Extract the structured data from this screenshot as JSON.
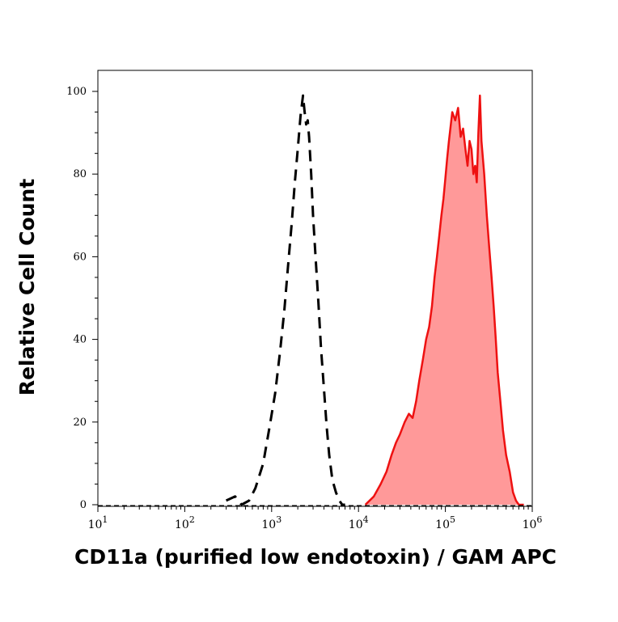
{
  "chart_data": {
    "type": "area",
    "title": "",
    "xlabel": "CD11a (purified low endotoxin) / GAM APC",
    "ylabel": "Relative Cell Count",
    "xscale": "log",
    "xlim": [
      10,
      1000000
    ],
    "ylim": [
      0,
      100
    ],
    "y_ticks": [
      0,
      20,
      40,
      60,
      80,
      100
    ],
    "x_ticks": [
      {
        "value": 10,
        "base": "10",
        "exp": "1"
      },
      {
        "value": 100,
        "base": "10",
        "exp": "2"
      },
      {
        "value": 1000,
        "base": "10",
        "exp": "3"
      },
      {
        "value": 10000,
        "base": "10",
        "exp": "4"
      },
      {
        "value": 100000,
        "base": "10",
        "exp": "5"
      },
      {
        "value": 1000000,
        "base": "10",
        "exp": "6"
      }
    ],
    "grid": false,
    "legend": "none",
    "series": [
      {
        "style": "dashed",
        "color": "#000000",
        "fill": "none",
        "x": [
          300,
          380,
          450,
          550,
          650,
          800,
          950,
          1100,
          1250,
          1400,
          1550,
          1700,
          1850,
          2000,
          2150,
          2300,
          2400,
          2500,
          2600,
          2700,
          2850,
          3000,
          3200,
          3450,
          3700,
          4000,
          4300,
          4600,
          5000,
          5500,
          6000,
          6500,
          7000
        ],
        "y": [
          1,
          2,
          0,
          1,
          4,
          10,
          19,
          27,
          37,
          47,
          58,
          68,
          78,
          86,
          94,
          99,
          95,
          92,
          93,
          89,
          80,
          70,
          60,
          49,
          38,
          28,
          19,
          12,
          6,
          3,
          1,
          0,
          0
        ]
      },
      {
        "style": "solid",
        "color": "#ee1111",
        "fill": "#ff9999",
        "x": [
          12000,
          15000,
          18000,
          21000,
          24000,
          27000,
          30000,
          34000,
          38000,
          42000,
          46000,
          50000,
          55000,
          60000,
          65000,
          70000,
          75000,
          80000,
          85000,
          90000,
          95000,
          100000,
          105000,
          110000,
          120000,
          130000,
          140000,
          150000,
          160000,
          170000,
          180000,
          190000,
          200000,
          210000,
          220000,
          230000,
          240000,
          250000,
          260000,
          280000,
          300000,
          320000,
          340000,
          360000,
          380000,
          400000,
          430000,
          460000,
          500000,
          550000,
          600000,
          650000,
          700000,
          750000,
          800000
        ],
        "y": [
          0,
          2,
          5,
          8,
          12,
          15,
          17,
          20,
          22,
          21,
          25,
          30,
          35,
          40,
          43,
          48,
          55,
          60,
          65,
          70,
          74,
          79,
          84,
          88,
          95,
          93,
          96,
          89,
          91,
          86,
          82,
          88,
          86,
          80,
          82,
          78,
          90,
          99,
          88,
          80,
          70,
          62,
          55,
          48,
          40,
          32,
          25,
          18,
          12,
          8,
          3,
          1,
          0,
          0,
          0
        ]
      }
    ]
  }
}
